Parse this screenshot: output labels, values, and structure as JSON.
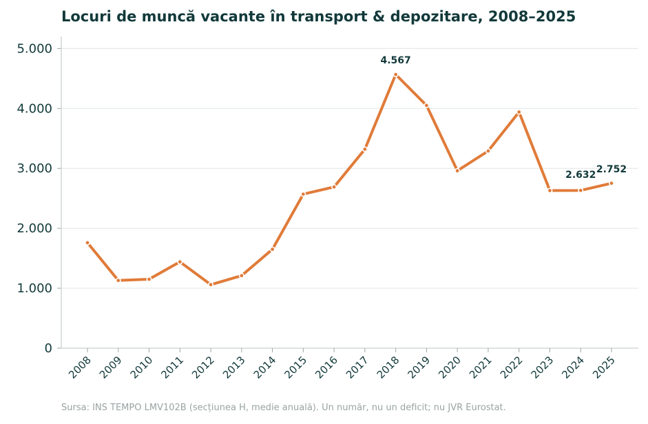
{
  "chart_data": {
    "type": "line",
    "title": "Locuri de muncă vacante în transport & depozitare, 2008–2025",
    "xlabel": "",
    "ylabel": "",
    "categories": [
      "2008",
      "2009",
      "2010",
      "2011",
      "2012",
      "2013",
      "2014",
      "2015",
      "2016",
      "2017",
      "2018",
      "2019",
      "2020",
      "2021",
      "2022",
      "2023",
      "2024",
      "2025"
    ],
    "series": [
      {
        "values": [
          1760,
          1130,
          1150,
          1440,
          1060,
          1210,
          1650,
          2570,
          2690,
          3320,
          4567,
          4050,
          2960,
          3290,
          3940,
          2630,
          2632,
          2752
        ]
      }
    ],
    "ylim": [
      0,
      5200
    ],
    "yticks": [
      0,
      1000,
      2000,
      3000,
      4000,
      5000
    ],
    "ytick_labels": [
      "0",
      "1.000",
      "2.000",
      "3.000",
      "4.000",
      "5.000"
    ],
    "data_labels": [
      {
        "year": "2018",
        "text": "4.567"
      },
      {
        "year": "2024",
        "text": "2.632"
      },
      {
        "year": "2025",
        "text": "2.752"
      }
    ],
    "line_color": "#e07b39",
    "grid": "horizontal",
    "legend": "none"
  },
  "source_note": "Sursa: INS TEMPO LMV102B (secțiunea H, medie anuală). Un număr, nu un deficit; nu JVR Eurostat."
}
